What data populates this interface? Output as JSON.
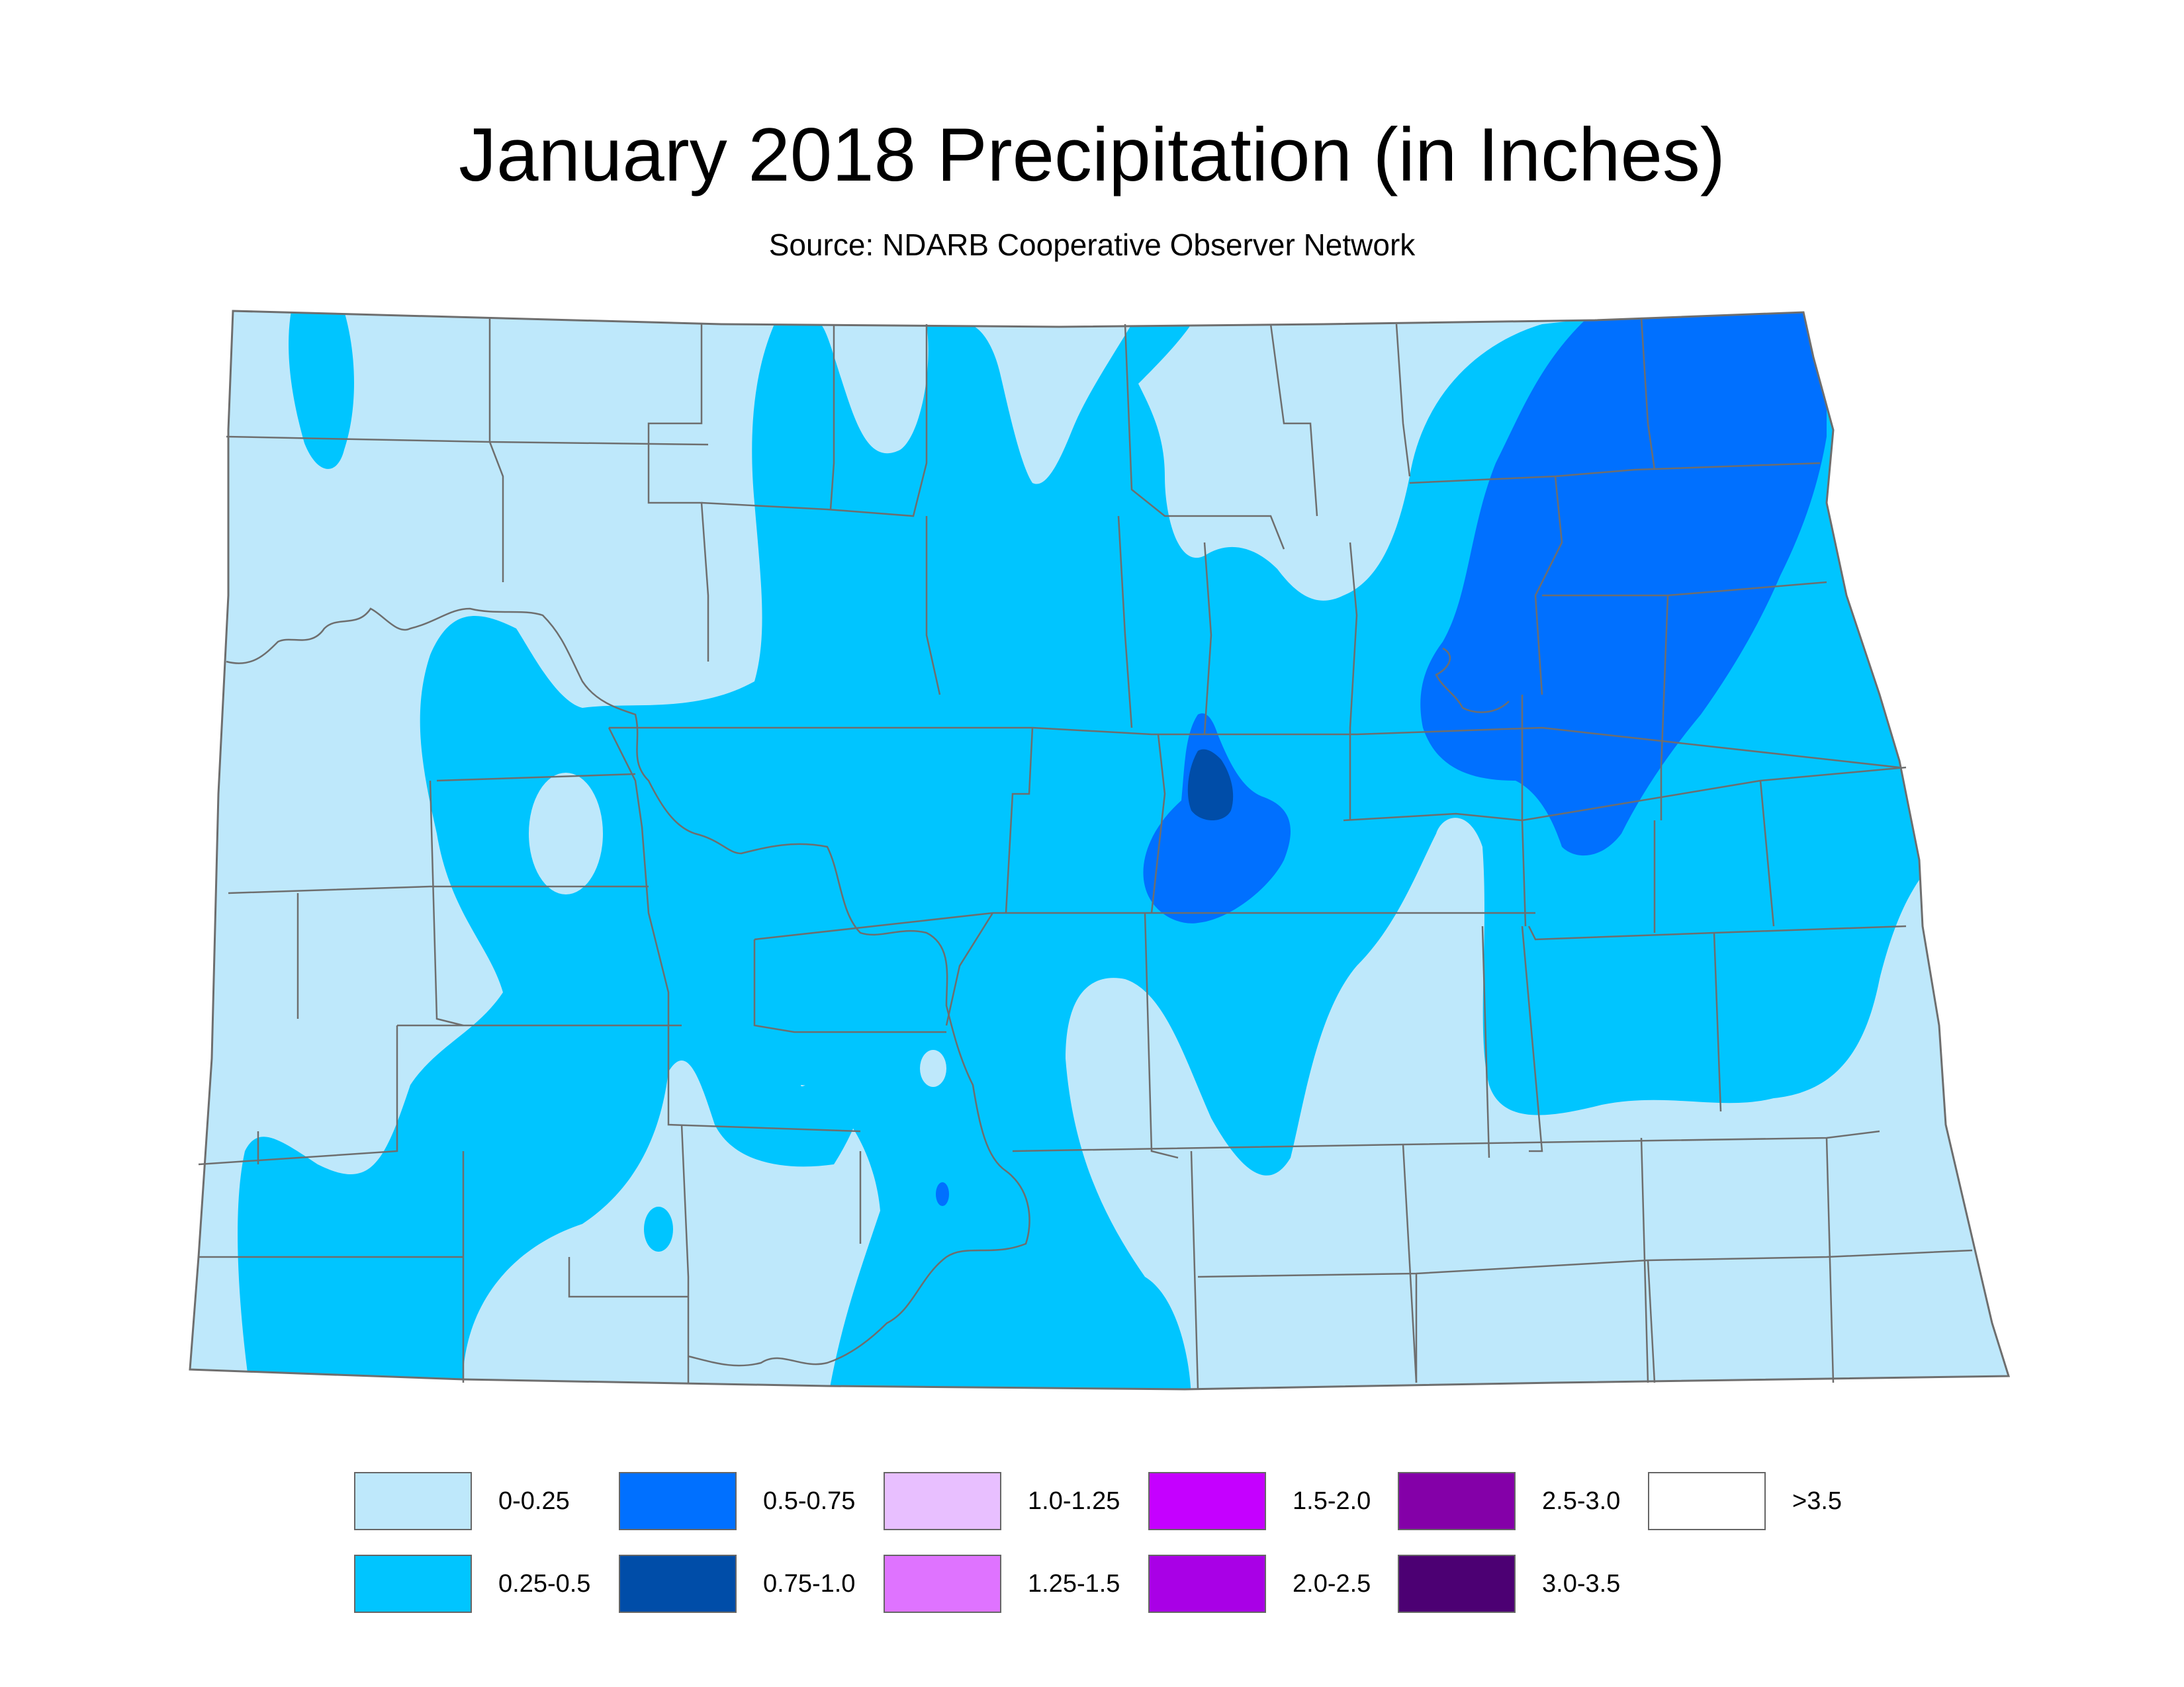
{
  "title": "January 2018 Precipitation (in Inches)",
  "subtitle": "Source: NDARB Cooperative Observer Network",
  "map": {
    "region": "North Dakota",
    "variable": "precipitation",
    "units": "inches"
  },
  "legend": [
    {
      "label": "0-0.25",
      "color": "#bee8fb"
    },
    {
      "label": "0.25-0.5",
      "color": "#00c5ff"
    },
    {
      "label": "0.5-0.75",
      "color": "#0070ff"
    },
    {
      "label": "0.75-1.0",
      "color": "#004da8"
    },
    {
      "label": "1.0-1.25",
      "color": "#e8bfff"
    },
    {
      "label": "1.25-1.5",
      "color": "#df73ff"
    },
    {
      "label": "1.5-2.0",
      "color": "#c500ff"
    },
    {
      "label": "2.0-2.5",
      "color": "#a900e6"
    },
    {
      "label": "2.5-3.0",
      "color": "#8400a8"
    },
    {
      "label": "3.0-3.5",
      "color": "#4c0073"
    },
    {
      "label": ">3.5",
      "color": "#ffffff"
    }
  ],
  "colors": {
    "county_lines": "#6e6e6e",
    "swatch_border": "#666666"
  }
}
